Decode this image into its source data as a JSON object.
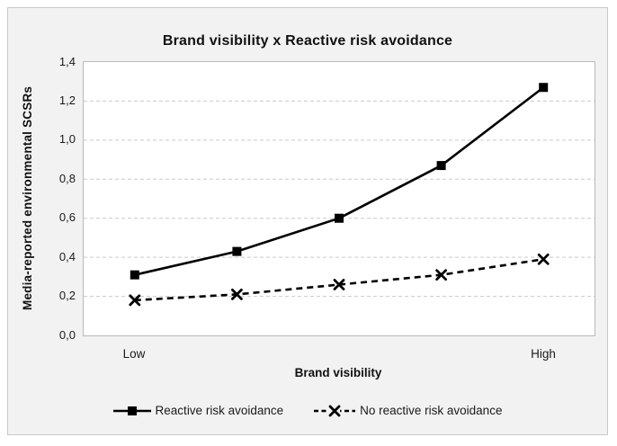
{
  "figure": {
    "background_color": "#f2f2f2",
    "border_color": "#c9c9c9"
  },
  "colors": {
    "series_color": "#000000",
    "gridline_color": "#c9c9c9",
    "plot_border_color": "#b9b9b9",
    "plot_background": "#ffffff",
    "text_color": "#111111"
  },
  "chart_data": {
    "type": "line",
    "title": "Brand visibility x Reactive risk avoidance",
    "xlabel": "Brand visibility",
    "ylabel": "Media-reported environmental SCSRs",
    "x_tick_labels": [
      "Low",
      "High"
    ],
    "ylim": [
      0,
      1.4
    ],
    "ytick_step": 0.2,
    "ytick_labels": [
      "0,0",
      "0,2",
      "0,4",
      "0,6",
      "0,8",
      "1,0",
      "1,2",
      "1,4"
    ],
    "decimal_separator": ",",
    "grid": "horizontal-dashed",
    "legend_position": "bottom",
    "points_per_series": 5,
    "series": [
      {
        "name": "Reactive risk avoidance",
        "line_style": "solid",
        "marker": "square",
        "values": [
          0.31,
          0.43,
          0.6,
          0.87,
          1.27
        ]
      },
      {
        "name": "No reactive risk avoidance",
        "line_style": "dashed",
        "marker": "x",
        "values": [
          0.18,
          0.21,
          0.26,
          0.31,
          0.39
        ]
      }
    ]
  }
}
